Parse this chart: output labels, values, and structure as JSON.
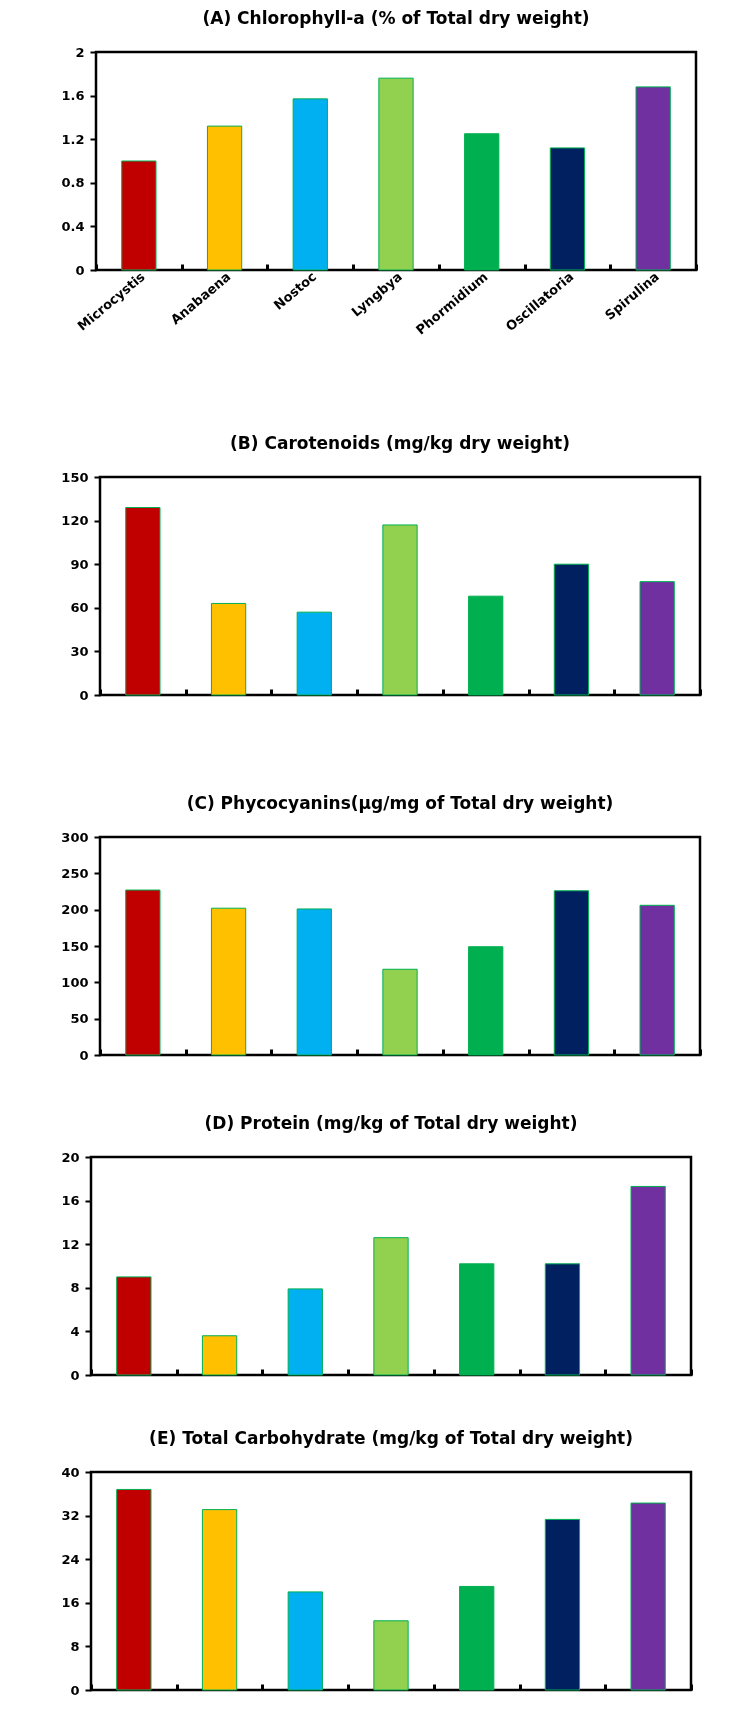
{
  "chart_data": [
    {
      "type": "bar",
      "title": "(A) Chlorophyll-a (% of Total dry weight)",
      "categories": [
        "Microcystis",
        "Anabaena",
        "Nostoc",
        "Lyngbya",
        "Phormidium",
        "Oscillatoria",
        "Spirulina"
      ],
      "values": [
        1.0,
        1.32,
        1.57,
        1.76,
        1.25,
        1.12,
        1.68
      ],
      "colors": [
        "#c00000",
        "#ffc000",
        "#00b0f0",
        "#92d050",
        "#00b050",
        "#002060",
        "#7030a0"
      ],
      "ylim": [
        0,
        2
      ],
      "yticks": [
        0,
        0.4,
        0.8,
        1.2,
        1.6,
        2
      ],
      "grid": false
    },
    {
      "type": "bar",
      "title": "(B) Carotenoids (mg/kg dry weight)",
      "categories": [
        null,
        null,
        null,
        null,
        null,
        null,
        null
      ],
      "values": [
        129,
        63,
        57,
        117,
        68,
        90,
        78
      ],
      "colors": [
        "#c00000",
        "#ffc000",
        "#00b0f0",
        "#92d050",
        "#00b050",
        "#002060",
        "#7030a0"
      ],
      "ylim": [
        0,
        150
      ],
      "yticks": [
        0,
        30,
        60,
        90,
        120,
        150
      ],
      "grid": false
    },
    {
      "type": "bar",
      "title": "(C) Phycocyanins(µg/mg of Total dry weight)",
      "categories": [
        null,
        null,
        null,
        null,
        null,
        null,
        null
      ],
      "values": [
        227,
        202,
        201,
        118,
        149,
        226,
        206
      ],
      "colors": [
        "#c00000",
        "#ffc000",
        "#00b0f0",
        "#92d050",
        "#00b050",
        "#002060",
        "#7030a0"
      ],
      "ylim": [
        0,
        300
      ],
      "yticks": [
        0,
        50,
        100,
        150,
        200,
        250,
        300
      ],
      "grid": false
    },
    {
      "type": "bar",
      "title": "(D) Protein (mg/kg of Total dry weight)",
      "categories": [
        null,
        null,
        null,
        null,
        null,
        null,
        null
      ],
      "values": [
        9.0,
        3.6,
        7.9,
        12.6,
        10.2,
        10.2,
        17.3
      ],
      "colors": [
        "#c00000",
        "#ffc000",
        "#00b0f0",
        "#92d050",
        "#00b050",
        "#002060",
        "#7030a0"
      ],
      "ylim": [
        0,
        20
      ],
      "yticks": [
        0,
        4,
        8,
        12,
        16,
        20
      ],
      "grid": false
    },
    {
      "type": "bar",
      "title": "(E) Total Carbohydrate (mg/kg of Total dry weight)",
      "categories": [
        null,
        null,
        null,
        null,
        null,
        null,
        null
      ],
      "values": [
        36.8,
        33.1,
        18.0,
        12.7,
        19.0,
        31.3,
        34.3
      ],
      "colors": [
        "#c00000",
        "#ffc000",
        "#00b0f0",
        "#92d050",
        "#00b050",
        "#002060",
        "#7030a0"
      ],
      "ylim": [
        0,
        40
      ],
      "yticks": [
        0,
        8,
        16,
        24,
        32,
        40
      ],
      "grid": false
    }
  ]
}
